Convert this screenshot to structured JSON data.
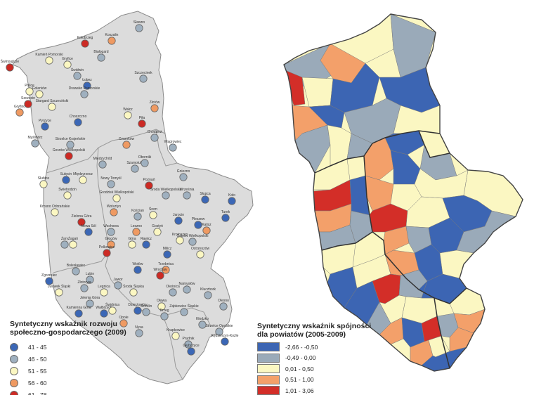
{
  "colors": {
    "map_fill": "#dcdcdc",
    "dot_41_45": "#3b67b6",
    "dot_46_50": "#9fb0bf",
    "dot_51_55": "#fbf7c2",
    "dot_56_60": "#ef9a62",
    "dot_61_78": "#cc2a24",
    "cls_1": "#3c65b3",
    "cls_2": "#9aaab9",
    "cls_3": "#fbf7c2",
    "cls_4": "#f3a06a",
    "cls_5": "#d32e28"
  },
  "left_legend": {
    "title_line1": "Syntetyczny wskaźnik rozwoju",
    "title_line2": "społeczno-gospodarczego (2009)",
    "items": [
      {
        "label": "41 - 45",
        "color": "#3b67b6"
      },
      {
        "label": "46 - 50",
        "color": "#9fb0bf"
      },
      {
        "label": "51 - 55",
        "color": "#fbf7c2"
      },
      {
        "label": "56 - 60",
        "color": "#ef9a62"
      },
      {
        "label": "61 - 78",
        "color": "#cc2a24"
      }
    ]
  },
  "right_legend": {
    "title_line1": "Syntetyczny wskaźnik spójności",
    "title_line2": "dla powiatów (2005-2009)",
    "items": [
      {
        "label": "-2,66 - -0,50",
        "color": "#3c65b3"
      },
      {
        "label": "-0,49 - 0,00",
        "color": "#9aaab9"
      },
      {
        "label": "0,01 - 0,50",
        "color": "#fbf7c2"
      },
      {
        "label": "0,51 - 1,00",
        "color": "#f3a06a"
      },
      {
        "label": "1,01 - 3,06",
        "color": "#d32e28"
      }
    ]
  },
  "cities": [
    {
      "name": "Kołobrzeg",
      "cls": 5
    },
    {
      "name": "Koszalin",
      "cls": 4
    },
    {
      "name": "Sławno",
      "cls": 2
    },
    {
      "name": "Kamień Pomorski",
      "cls": 3
    },
    {
      "name": "Białogard",
      "cls": 2
    },
    {
      "name": "Świnoujście",
      "cls": 5
    },
    {
      "name": "Gryfice",
      "cls": 3
    },
    {
      "name": "Świdwin",
      "cls": 2
    },
    {
      "name": "Szczecinek",
      "cls": 2
    },
    {
      "name": "Łobez",
      "cls": 1
    },
    {
      "name": "Drawsko Pomorskie",
      "cls": 2
    },
    {
      "name": "Police",
      "cls": 3
    },
    {
      "name": "Goleniów",
      "cls": 3
    },
    {
      "name": "Szczecin",
      "cls": 5
    },
    {
      "name": "Stargard Szczeciński",
      "cls": 3
    },
    {
      "name": "Gryfino",
      "cls": 4
    },
    {
      "name": "Choszczno",
      "cls": 1
    },
    {
      "name": "Wałcz",
      "cls": 3
    },
    {
      "name": "Złotów",
      "cls": 4
    },
    {
      "name": "Pyrzyce",
      "cls": 1
    },
    {
      "name": "Piła",
      "cls": 5
    },
    {
      "name": "Chodzież",
      "cls": 2
    },
    {
      "name": "Myślibórz",
      "cls": 2
    },
    {
      "name": "Czarnków",
      "cls": 4
    },
    {
      "name": "Strzelce Krajeńskie",
      "cls": 2
    },
    {
      "name": "Wągrowiec",
      "cls": 2
    },
    {
      "name": "Gorzów Wielkopolski",
      "cls": 5
    },
    {
      "name": "Międzychód",
      "cls": 2
    },
    {
      "name": "Szamotuły",
      "cls": 2
    },
    {
      "name": "Oborniki",
      "cls": 2
    },
    {
      "name": "Gniezno",
      "cls": 2
    },
    {
      "name": "Słubice",
      "cls": 3
    },
    {
      "name": "Sulęcin",
      "cls": 1
    },
    {
      "name": "Międzyrzecz",
      "cls": 3
    },
    {
      "name": "Nowy Tomyśl",
      "cls": 2
    },
    {
      "name": "Poznań",
      "cls": 5
    },
    {
      "name": "Września",
      "cls": 2
    },
    {
      "name": "Świebodzin",
      "cls": 3
    },
    {
      "name": "Grodzisk Wielkopolski",
      "cls": 3
    },
    {
      "name": "Środa Wielkopolska",
      "cls": 2
    },
    {
      "name": "Słupca",
      "cls": 1
    },
    {
      "name": "Koło",
      "cls": 1
    },
    {
      "name": "Krosno Odrzańskie",
      "cls": 3
    },
    {
      "name": "Wolsztyn",
      "cls": 4
    },
    {
      "name": "Kościan",
      "cls": 2
    },
    {
      "name": "Śrem",
      "cls": 3
    },
    {
      "name": "Jarocin",
      "cls": 1
    },
    {
      "name": "Turek",
      "cls": 1
    },
    {
      "name": "Zielona Góra",
      "cls": 5
    },
    {
      "name": "Nowa Sól",
      "cls": 1
    },
    {
      "name": "Wschowa",
      "cls": 2
    },
    {
      "name": "Leszno",
      "cls": 4
    },
    {
      "name": "Gostyń",
      "cls": 3
    },
    {
      "name": "Pleszew",
      "cls": 1
    },
    {
      "name": "Żary",
      "cls": 2
    },
    {
      "name": "Żagań",
      "cls": 3
    },
    {
      "name": "Krotoszyn",
      "cls": 3
    },
    {
      "name": "Kalisz",
      "cls": 4
    },
    {
      "name": "Ostrów Wielkopolski",
      "cls": 2
    },
    {
      "name": "Głogów",
      "cls": 4
    },
    {
      "name": "Góra",
      "cls": 3
    },
    {
      "name": "Rawicz",
      "cls": 1
    },
    {
      "name": "Polkowice",
      "cls": 5
    },
    {
      "name": "Milicz",
      "cls": 1
    },
    {
      "name": "Ostrzeszów",
      "cls": 3
    },
    {
      "name": "Bolesławiec",
      "cls": 2
    },
    {
      "name": "Lubin",
      "cls": 2
    },
    {
      "name": "Wołów",
      "cls": 1
    },
    {
      "name": "Trzebnica",
      "cls": 4
    },
    {
      "name": "Zgorzelec",
      "cls": 1
    },
    {
      "name": "Lwówek Śląski",
      "cls": 3
    },
    {
      "name": "Złotoryja",
      "cls": 2
    },
    {
      "name": "Legnica",
      "cls": 3
    },
    {
      "name": "Środa Śląska",
      "cls": 3
    },
    {
      "name": "Oleśnica",
      "cls": 2
    },
    {
      "name": "Wrocław",
      "cls": 5
    },
    {
      "name": "Jawor",
      "cls": 2
    },
    {
      "name": "Namysłów",
      "cls": 2
    },
    {
      "name": "Kluczbork",
      "cls": 2
    },
    {
      "name": "Jelenia Góra",
      "cls": 2
    },
    {
      "name": "Oława",
      "cls": 3
    },
    {
      "name": "Olesno",
      "cls": 2
    },
    {
      "name": "Kamienna Góra",
      "cls": 1
    },
    {
      "name": "Wałbrzych",
      "cls": 1
    },
    {
      "name": "Świdnica",
      "cls": 3
    },
    {
      "name": "Dzierżoniów",
      "cls": 1
    },
    {
      "name": "Strzelin",
      "cls": 2
    },
    {
      "name": "Brzeg",
      "cls": 2
    },
    {
      "name": "Ząbkowice Śląskie",
      "cls": 2
    },
    {
      "name": "Opole",
      "cls": 4
    },
    {
      "name": "Kłodzko",
      "cls": 2
    },
    {
      "name": "Nysa",
      "cls": 2
    },
    {
      "name": "Krapkowice",
      "cls": 3
    },
    {
      "name": "Strzelce Opolskie",
      "cls": 2
    },
    {
      "name": "Prudnik",
      "cls": 2
    },
    {
      "name": "Kędzierzyn-Koźle",
      "cls": 1
    },
    {
      "name": "Głubczyce",
      "cls": 1
    }
  ],
  "right_regions": [
    {
      "name": "koszalin-west",
      "cls": 2
    },
    {
      "name": "koszalin-north",
      "cls": 3
    },
    {
      "name": "koszalin-east",
      "cls": 2
    },
    {
      "name": "kamien",
      "cls": 4
    },
    {
      "name": "swinoujscie",
      "cls": 5
    },
    {
      "name": "goleniow",
      "cls": 3
    },
    {
      "name": "lobez",
      "cls": 1
    },
    {
      "name": "szczecinek",
      "cls": 1
    },
    {
      "name": "drawsko",
      "cls": 2
    },
    {
      "name": "szczecin-area",
      "cls": 4
    },
    {
      "name": "gryfino",
      "cls": 2
    },
    {
      "name": "pyrzyce",
      "cls": 1
    },
    {
      "name": "stargard",
      "cls": 3
    },
    {
      "name": "choszczno",
      "cls": 2
    },
    {
      "name": "walcz",
      "cls": 3
    },
    {
      "name": "zlotow",
      "cls": 1
    },
    {
      "name": "pila",
      "cls": 2
    },
    {
      "name": "myslibórz",
      "cls": 3
    },
    {
      "name": "gorzow",
      "cls": 5
    },
    {
      "name": "strzelce",
      "cls": 4
    },
    {
      "name": "czarnkow",
      "cls": 1
    },
    {
      "name": "wagrowiec",
      "cls": 3
    },
    {
      "name": "szamotuly",
      "cls": 4
    },
    {
      "name": "gniezno",
      "cls": 3
    },
    {
      "name": "slubice",
      "cls": 4
    },
    {
      "name": "sulecin",
      "cls": 2
    },
    {
      "name": "miedzyrzecz",
      "cls": 1
    },
    {
      "name": "poznan",
      "cls": 5
    },
    {
      "name": "wrzesnia",
      "cls": 3
    },
    {
      "name": "konin-east",
      "cls": 1
    },
    {
      "name": "krosno",
      "cls": 3
    },
    {
      "name": "swiebodzin",
      "cls": 2
    },
    {
      "name": "nowy-tomysl",
      "cls": 4
    },
    {
      "name": "srem",
      "cls": 2
    },
    {
      "name": "jarocin",
      "cls": 1
    },
    {
      "name": "turek",
      "cls": 2
    },
    {
      "name": "zielona-gora",
      "cls": 1
    },
    {
      "name": "wschowa",
      "cls": 3
    },
    {
      "name": "leszno",
      "cls": 4
    },
    {
      "name": "krotoszyn",
      "cls": 1
    },
    {
      "name": "kalisz",
      "cls": 3
    },
    {
      "name": "zary",
      "cls": 1
    },
    {
      "name": "glogow",
      "cls": 5
    },
    {
      "name": "rawicz",
      "cls": 2
    },
    {
      "name": "ostrow",
      "cls": 1
    },
    {
      "name": "milicz",
      "cls": 3
    },
    {
      "name": "ostrzeszow",
      "cls": 3
    },
    {
      "name": "zgorzelec",
      "cls": 2
    },
    {
      "name": "boleslawiec",
      "cls": 4
    },
    {
      "name": "legnica",
      "cls": 1
    },
    {
      "name": "wroclaw",
      "cls": 5
    },
    {
      "name": "olesnica",
      "cls": 3
    },
    {
      "name": "kluczbork",
      "cls": 4
    },
    {
      "name": "jelenia-gora",
      "cls": 3
    },
    {
      "name": "walbrzych",
      "cls": 4
    },
    {
      "name": "swidnica",
      "cls": 3
    },
    {
      "name": "olawa",
      "cls": 2
    },
    {
      "name": "opole",
      "cls": 4
    },
    {
      "name": "klodzko",
      "cls": 1
    },
    {
      "name": "nysa",
      "cls": 1
    },
    {
      "name": "strzelce-op",
      "cls": 2
    },
    {
      "name": "glubczyce",
      "cls": 2
    }
  ]
}
